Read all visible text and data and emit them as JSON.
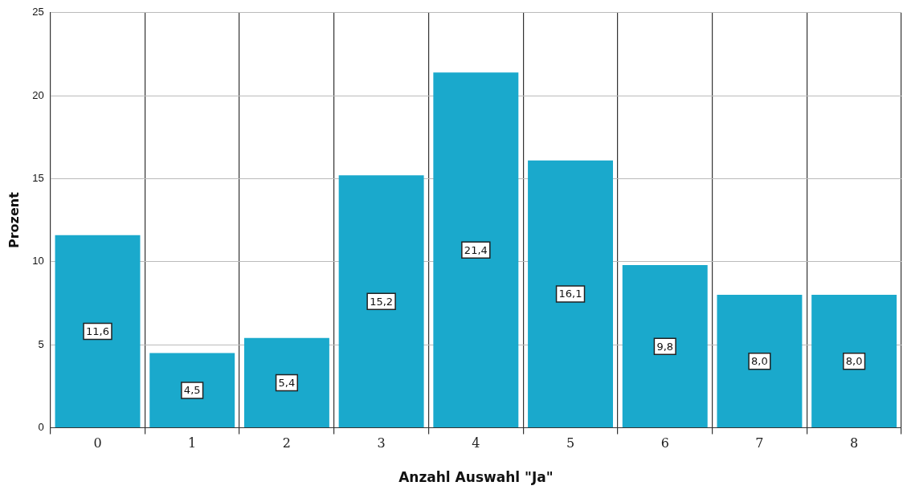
{
  "chart_data": {
    "type": "bar",
    "xlabel": "Anzahl Auswahl \"Ja\"",
    "ylabel": "Prozent",
    "categories": [
      "0",
      "1",
      "2",
      "3",
      "4",
      "5",
      "6",
      "7",
      "8"
    ],
    "values": [
      11.6,
      4.5,
      5.4,
      15.2,
      21.4,
      16.1,
      9.8,
      8.0,
      8.0
    ],
    "value_labels": [
      "11,6",
      "4,5",
      "5,4",
      "15,2",
      "21,4",
      "16,1",
      "9,8",
      "8,0",
      "8,0"
    ],
    "color": "#1aa9cc",
    "ylim": [
      0,
      25
    ],
    "yticks": [
      0,
      5,
      10,
      15,
      20,
      25
    ],
    "grid": true,
    "legend": false
  }
}
